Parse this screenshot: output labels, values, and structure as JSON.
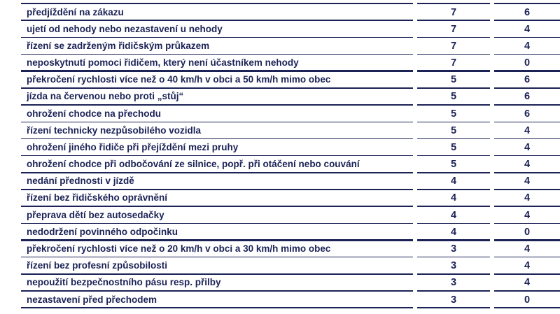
{
  "table": {
    "rows": [
      [
        "předjíždění na zákazu",
        7,
        6
      ],
      [
        "ujetí od nehody nebo nezastavení u nehody",
        7,
        4
      ],
      [
        "řízení se zadrženým řidičským průkazem",
        7,
        4
      ],
      [
        "neposkytnutí pomoci řidičem, který není účastníkem nehody",
        7,
        0
      ],
      [
        "překročení rychlosti více než o 40 km/h v obci a 50 km/h mimo obec",
        5,
        6
      ],
      [
        "jízda na červenou nebo proti „stůj“",
        5,
        6
      ],
      [
        "ohrožení chodce na přechodu",
        5,
        6
      ],
      [
        "řízení technicky nezpůsobilého vozidla",
        5,
        4
      ],
      [
        "ohrožení jiného řidiče při přejíždění mezi pruhy",
        5,
        4
      ],
      [
        "ohrožení chodce při odbočování ze silnice, popř. při otáčení nebo couvání",
        5,
        4
      ],
      [
        "nedání přednosti v jízdě",
        4,
        4
      ],
      [
        "řízení bez řidičského oprávnění",
        4,
        4
      ],
      [
        "přeprava dětí bez autosedačky",
        4,
        4
      ],
      [
        "nedodržení povinného odpočinku",
        4,
        0
      ],
      [
        "překročení rychlosti více než o 20 km/h v obci a 30 km/h mimo obec",
        3,
        4
      ],
      [
        "řízení bez profesní způsobilosti",
        3,
        4
      ],
      [
        "nepoužití bezpečnostního pásu resp. přilby",
        3,
        4
      ],
      [
        "nezastavení před přechodem",
        3,
        0
      ]
    ]
  }
}
